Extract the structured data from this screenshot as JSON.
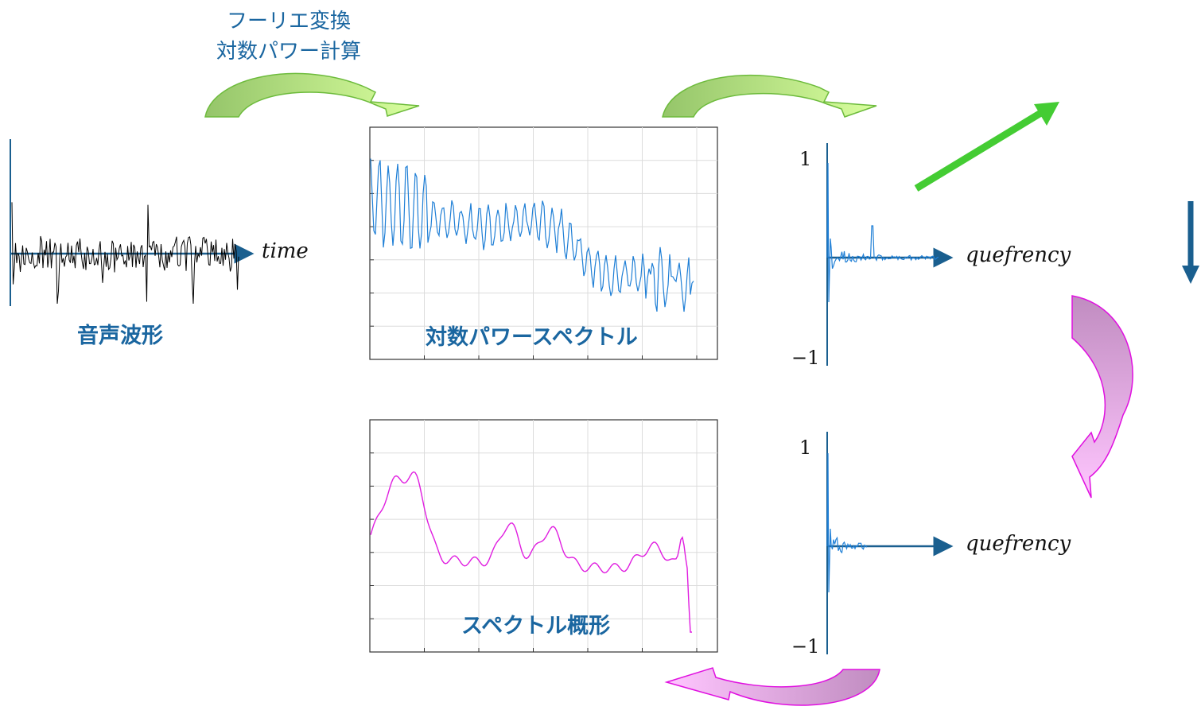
{
  "top_label": {
    "line1": "フーリエ変換",
    "line2": "対数パワー計算"
  },
  "waveform": {
    "label": "音声波形",
    "axis_label": "time"
  },
  "log_power_spectrum": {
    "label": "対数パワースペクトル"
  },
  "spectral_envelope": {
    "label": "スペクトル概形"
  },
  "cepstrum_top": {
    "axis_label": "quefrency",
    "tick_top": "1",
    "tick_bottom": "−1"
  },
  "cepstrum_bottom": {
    "axis_label": "quefrency",
    "tick_top": "1",
    "tick_bottom": "−1"
  },
  "colors": {
    "label_blue": "#1a66a0",
    "waveform_line": "#000000",
    "spectrum_line": "#1f7fd6",
    "envelope_line": "#e01ee0",
    "green_arrow": "#a6d86a",
    "green_straight_arrow": "#44cc33",
    "magenta_arrow": "#cc99cc",
    "axis_arrow": "#1a5f8f"
  }
}
